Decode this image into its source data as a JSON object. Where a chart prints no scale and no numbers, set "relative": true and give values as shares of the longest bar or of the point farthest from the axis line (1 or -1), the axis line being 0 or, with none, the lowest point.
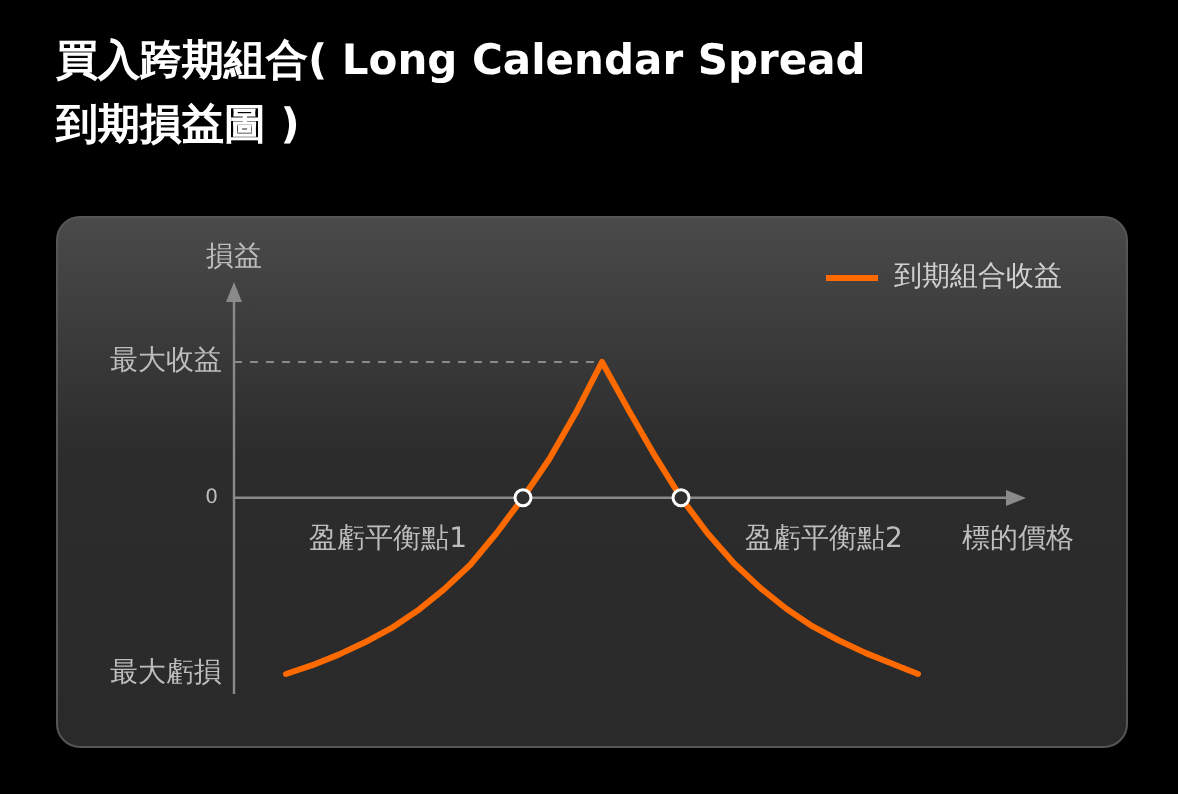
{
  "chart_data": {
    "type": "line",
    "title": "買入跨期組合( Long Calendar Spread\n到期損益圖 )",
    "xlabel": "標的價格",
    "ylabel": "損益",
    "relative": true,
    "legend": "top right",
    "marker": "none",
    "line_style": "solid",
    "categories": [
      null,
      null,
      null,
      null,
      null,
      null,
      null,
      null,
      null,
      null,
      null,
      null,
      null,
      null,
      null,
      null,
      null,
      null,
      null,
      null,
      null,
      null,
      null,
      null,
      null
    ],
    "series": [
      {
        "name": "到期組合收益",
        "color": "#ff6a00",
        "values": [
          -1,
          -0.95,
          -0.89,
          -0.82,
          -0.74,
          -0.64,
          -0.52,
          -0.38,
          -0.2,
          0,
          0.22,
          0.48,
          0.77,
          0.5,
          0.24,
          0,
          -0.2,
          -0.37,
          -0.51,
          -0.63,
          -0.73,
          -0.81,
          -0.88,
          -0.94,
          -1
        ]
      }
    ],
    "annotations": [
      "最大收益",
      "0",
      "最大虧損",
      "盈虧平衡點1",
      "盈虧平衡點2"
    ]
  }
}
